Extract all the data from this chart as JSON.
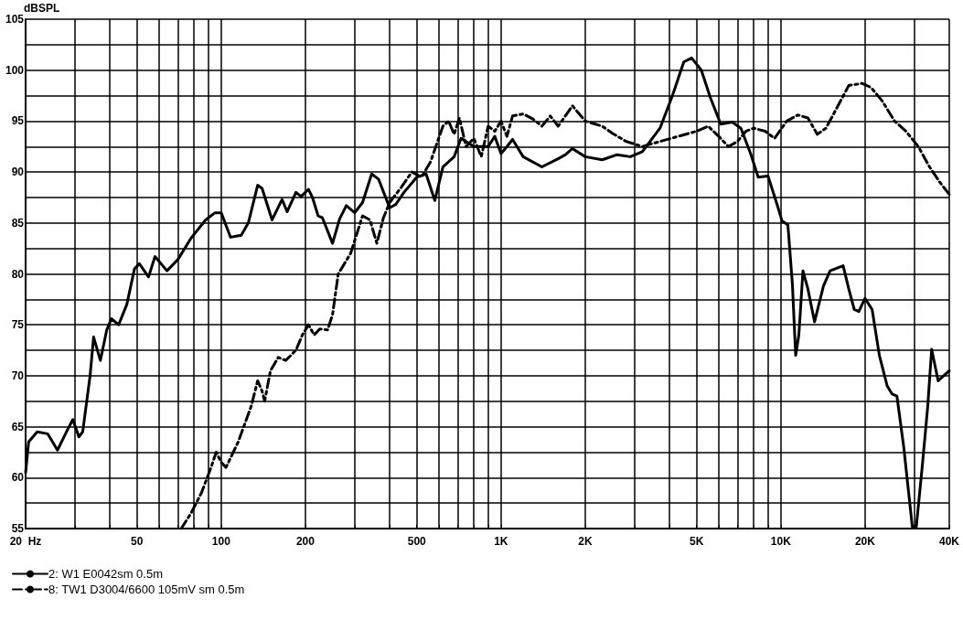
{
  "chart_data": {
    "type": "line",
    "ylabel": "dBSPL",
    "xlim": [
      20,
      40000
    ],
    "ylim": [
      55,
      105
    ],
    "log": "x",
    "grid": true,
    "legend": "bottom left",
    "marker": "none",
    "xticks": [
      {
        "value": 20,
        "label": "20  Hz"
      },
      {
        "value": 30,
        "label": null
      },
      {
        "value": 40,
        "label": null
      },
      50,
      {
        "value": 60,
        "label": null
      },
      {
        "value": 70,
        "label": null
      },
      {
        "value": 80,
        "label": null
      },
      {
        "value": 90,
        "label": null
      },
      100,
      200,
      {
        "value": 300,
        "label": null
      },
      {
        "value": 400,
        "label": null
      },
      500,
      {
        "value": 600,
        "label": null
      },
      {
        "value": 700,
        "label": null
      },
      {
        "value": 800,
        "label": null
      },
      {
        "value": 900,
        "label": null
      },
      {
        "value": 1000,
        "label": "1K"
      },
      {
        "value": 2000,
        "label": "2K"
      },
      {
        "value": 3000,
        "label": null
      },
      {
        "value": 4000,
        "label": null
      },
      {
        "value": 5000,
        "label": "5K"
      },
      {
        "value": 6000,
        "label": null
      },
      {
        "value": 7000,
        "label": null
      },
      {
        "value": 8000,
        "label": null
      },
      {
        "value": 9000,
        "label": null
      },
      {
        "value": 10000,
        "label": "10K"
      },
      {
        "value": 20000,
        "label": "20K"
      },
      {
        "value": 30000,
        "label": null
      },
      {
        "value": 40000,
        "label": "40K"
      }
    ],
    "yticks": [
      55,
      {
        "value": 57.5,
        "label": null
      },
      60,
      {
        "value": 62.5,
        "label": null
      },
      65,
      {
        "value": 67.5,
        "label": null
      },
      70,
      {
        "value": 72.5,
        "label": null
      },
      75,
      {
        "value": 77.5,
        "label": null
      },
      80,
      {
        "value": 82.5,
        "label": null
      },
      85,
      {
        "value": 87.5,
        "label": null
      },
      90,
      {
        "value": 92.5,
        "label": null
      },
      95,
      {
        "value": 97.5,
        "label": null
      },
      100,
      {
        "value": 102.5,
        "label": null
      },
      105
    ],
    "series": [
      {
        "name": "2: W1 E0042sm 0.5m",
        "color": "#000000",
        "line_style": "solid",
        "x": [
          20,
          20.5,
          22,
          24,
          26,
          28,
          29.5,
          31,
          32,
          34,
          35,
          37,
          39,
          40.5,
          43,
          46,
          49,
          51,
          55,
          58,
          64,
          70,
          78,
          88,
          95,
          100,
          108,
          118,
          125,
          135,
          140,
          152,
          165,
          172,
          185,
          193,
          205,
          212,
          222,
          230,
          250,
          265,
          280,
          300,
          320,
          345,
          365,
          400,
          420,
          450,
          500,
          540,
          580,
          620,
          680,
          720,
          800,
          900,
          950,
          1000,
          1050,
          1100,
          1200,
          1400,
          1600,
          1700,
          1800,
          2000,
          2300,
          2600,
          2900,
          3200,
          3700,
          4100,
          4500,
          4800,
          5200,
          5600,
          6100,
          6700,
          7200,
          7800,
          8300,
          9000,
          9700,
          10100,
          10600,
          11000,
          11300,
          11600,
          12000,
          12500,
          13200,
          14200,
          15000,
          16700,
          17500,
          18300,
          19000,
          20000,
          21200,
          22500,
          24000,
          25000,
          26000,
          27500,
          29500,
          30500,
          32000,
          33500,
          34600,
          36500,
          40000
        ],
        "values": [
          60.5,
          63.5,
          64.5,
          64.3,
          62.7,
          64.5,
          65.7,
          64,
          64.5,
          70,
          73.8,
          71.5,
          74.5,
          75.6,
          75,
          77,
          80.5,
          81,
          79.7,
          81.7,
          80.3,
          81.4,
          83.5,
          85.3,
          86,
          86,
          83.6,
          83.8,
          85,
          88.7,
          88.4,
          85.3,
          87.3,
          86.1,
          88,
          87.6,
          88.3,
          87.5,
          85.7,
          85.5,
          83,
          85.4,
          86.7,
          86,
          87,
          89.8,
          89.3,
          86.5,
          86.8,
          88,
          89.5,
          89.8,
          87.2,
          90.5,
          91.5,
          93.3,
          92.5,
          92.5,
          93.5,
          91.8,
          92.5,
          93.2,
          91.5,
          90.5,
          91.3,
          91.7,
          92.3,
          91.5,
          91.2,
          91.7,
          91.5,
          92,
          94.3,
          97.5,
          100.8,
          101.2,
          100,
          97.3,
          94.7,
          94.9,
          94.3,
          91.8,
          89.5,
          89.6,
          86.8,
          85.2,
          84.8,
          79,
          72,
          74,
          80.3,
          78.5,
          75.3,
          78.8,
          80.3,
          80.8,
          78.5,
          76.5,
          76.3,
          77.6,
          76.5,
          72,
          69,
          68.2,
          68,
          63,
          55.2,
          55.2,
          61,
          67,
          72.6,
          69.5,
          70.5
        ]
      },
      {
        "name": "8: TW1 D3004/6600 105mV sm 0.5m",
        "color": "#000000",
        "line_style": "dashed",
        "x": [
          72,
          78,
          85,
          92,
          96,
          100,
          104,
          115,
          128,
          135,
          140,
          143,
          150,
          160,
          170,
          185,
          195,
          205,
          215,
          225,
          240,
          250,
          262,
          290,
          320,
          340,
          360,
          380,
          400,
          440,
          480,
          520,
          560,
          620,
          650,
          680,
          710,
          750,
          800,
          850,
          900,
          950,
          1000,
          1050,
          1100,
          1200,
          1300,
          1400,
          1500,
          1600,
          1800,
          2000,
          2300,
          2500,
          2800,
          3200,
          3700,
          4300,
          5000,
          5500,
          6000,
          6500,
          7000,
          7500,
          8000,
          8800,
          9500,
          10500,
          11500,
          12500,
          13500,
          14500,
          16000,
          17500,
          19500,
          21000,
          23000,
          25500,
          28000,
          31000,
          34000,
          37000,
          40000
        ],
        "values": [
          55,
          56.5,
          58.5,
          61,
          62.5,
          61.5,
          61,
          63.5,
          67,
          69.5,
          68.5,
          67.5,
          70.5,
          71.8,
          71.5,
          72.5,
          74,
          75,
          74,
          74.6,
          74.5,
          76,
          80,
          82,
          85.7,
          85.3,
          83,
          85.5,
          87,
          88.5,
          90,
          89.5,
          91,
          94.5,
          95,
          93.7,
          95.3,
          92.5,
          93.3,
          91.5,
          94.5,
          94,
          95,
          93.5,
          95.5,
          95.7,
          95.2,
          94.5,
          95.5,
          94.5,
          96.5,
          95,
          94.5,
          93.8,
          93,
          92.5,
          93,
          93.5,
          94,
          94.5,
          93.5,
          92.5,
          93,
          94,
          94.3,
          94,
          93.3,
          95,
          95.6,
          95.3,
          93.7,
          94.3,
          96.5,
          98.5,
          98.7,
          98.3,
          97,
          95,
          94,
          92.5,
          90.5,
          89,
          87.8
        ]
      }
    ]
  }
}
